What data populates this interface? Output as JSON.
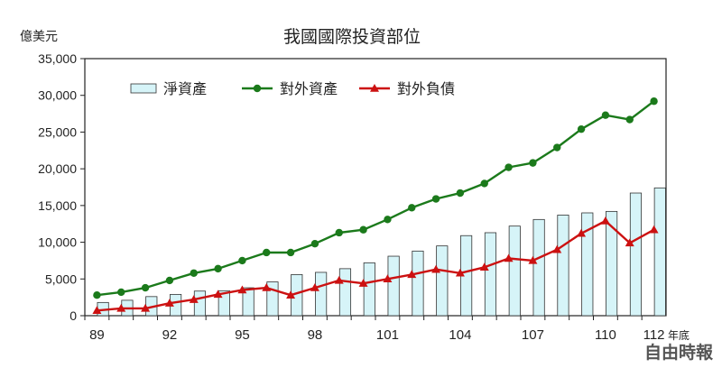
{
  "chart_data": {
    "type": "bar",
    "title": "我國國際投資部位",
    "ylabel": "億美元",
    "x_suffix": "年底",
    "ylim": [
      0,
      35000
    ],
    "yticks": [
      "0",
      "5,000",
      "10,000",
      "15,000",
      "20,000",
      "25,000",
      "30,000",
      "35,000"
    ],
    "categories": [
      89,
      90,
      91,
      92,
      93,
      94,
      95,
      96,
      97,
      98,
      99,
      100,
      101,
      102,
      103,
      104,
      105,
      106,
      107,
      108,
      109,
      110,
      111,
      112
    ],
    "xtick_labels": [
      "89",
      "92",
      "95",
      "98",
      "101",
      "104",
      "107",
      "110",
      "112"
    ],
    "legend_position": "top-left",
    "series": [
      {
        "name": "淨資產",
        "type": "bar",
        "color": "#d6f4f8",
        "edge": "#333333",
        "values": [
          1800,
          2100,
          2600,
          2900,
          3350,
          3400,
          3800,
          4600,
          5600,
          5900,
          6400,
          7200,
          8100,
          8800,
          9500,
          10900,
          11300,
          12200,
          13100,
          13700,
          14000,
          14200,
          16700,
          17400
        ]
      },
      {
        "name": "對外資產",
        "type": "line",
        "color": "#1b7a1b",
        "marker": "circle",
        "values": [
          2800,
          3200,
          3800,
          4800,
          5800,
          6400,
          7500,
          8600,
          8600,
          9800,
          11300,
          11700,
          13100,
          14700,
          15900,
          16700,
          18000,
          20200,
          20800,
          22900,
          25400,
          27300,
          26700,
          29200
        ]
      },
      {
        "name": "對外負債",
        "type": "line",
        "color": "#cc1111",
        "marker": "triangle",
        "values": [
          700,
          1000,
          1000,
          1700,
          2200,
          2900,
          3500,
          3800,
          2800,
          3800,
          4800,
          4400,
          5000,
          5600,
          6300,
          5800,
          6600,
          7800,
          7500,
          9000,
          11200,
          12900,
          9900,
          11700
        ]
      }
    ]
  },
  "watermark": "自由時報"
}
